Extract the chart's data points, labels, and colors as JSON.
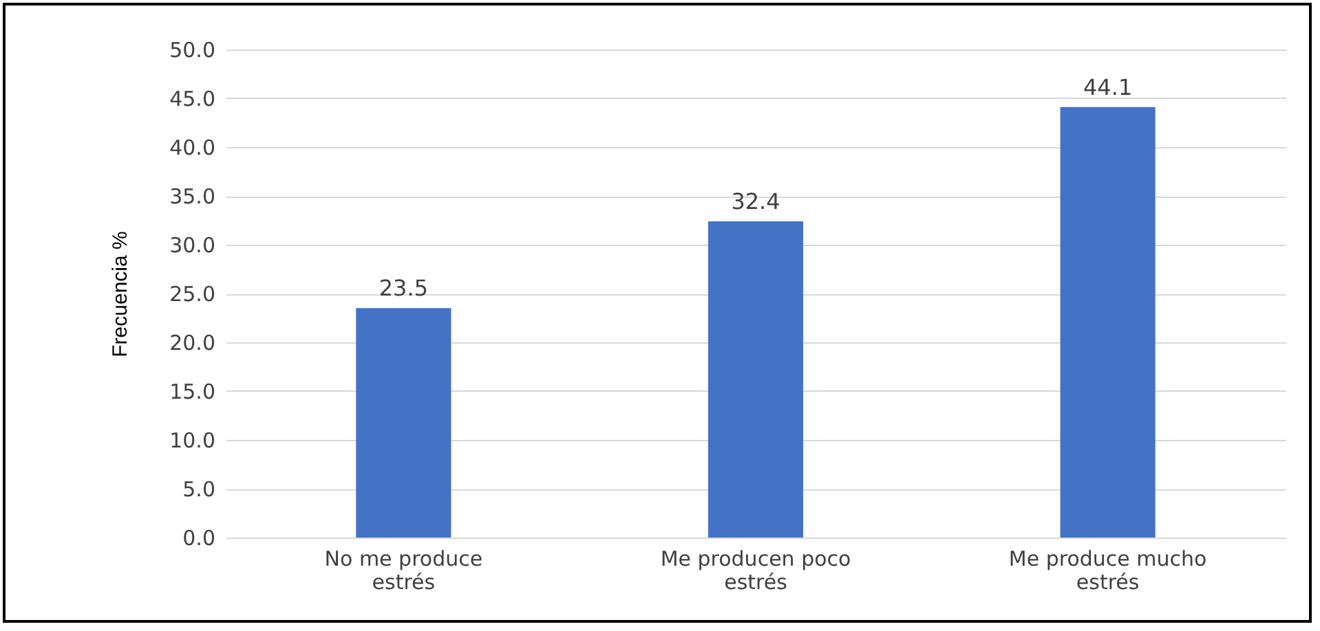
{
  "chart_data": {
    "type": "bar",
    "ylabel": "Frecuencia %",
    "categories": [
      "No me produce estrés",
      "Me producen poco estrés",
      "Me produce mucho estrés"
    ],
    "values": [
      23.5,
      32.4,
      44.1
    ],
    "color": "#4472c4",
    "data_labels": true,
    "ylim": [
      0,
      50
    ],
    "yticks": [
      {
        "value": 0,
        "label": "0.0"
      },
      {
        "value": 5,
        "label": "5.0"
      },
      {
        "value": 10,
        "label": "10.0"
      },
      {
        "value": 15,
        "label": "15.0"
      },
      {
        "value": 20,
        "label": "20.0"
      },
      {
        "value": 25,
        "label": "25.0"
      },
      {
        "value": 30,
        "label": "30.0"
      },
      {
        "value": 35,
        "label": "35.0"
      },
      {
        "value": 40,
        "label": "40.0"
      },
      {
        "value": 45,
        "label": "45.0"
      },
      {
        "value": 50,
        "label": "50.0"
      }
    ],
    "grid": true
  }
}
